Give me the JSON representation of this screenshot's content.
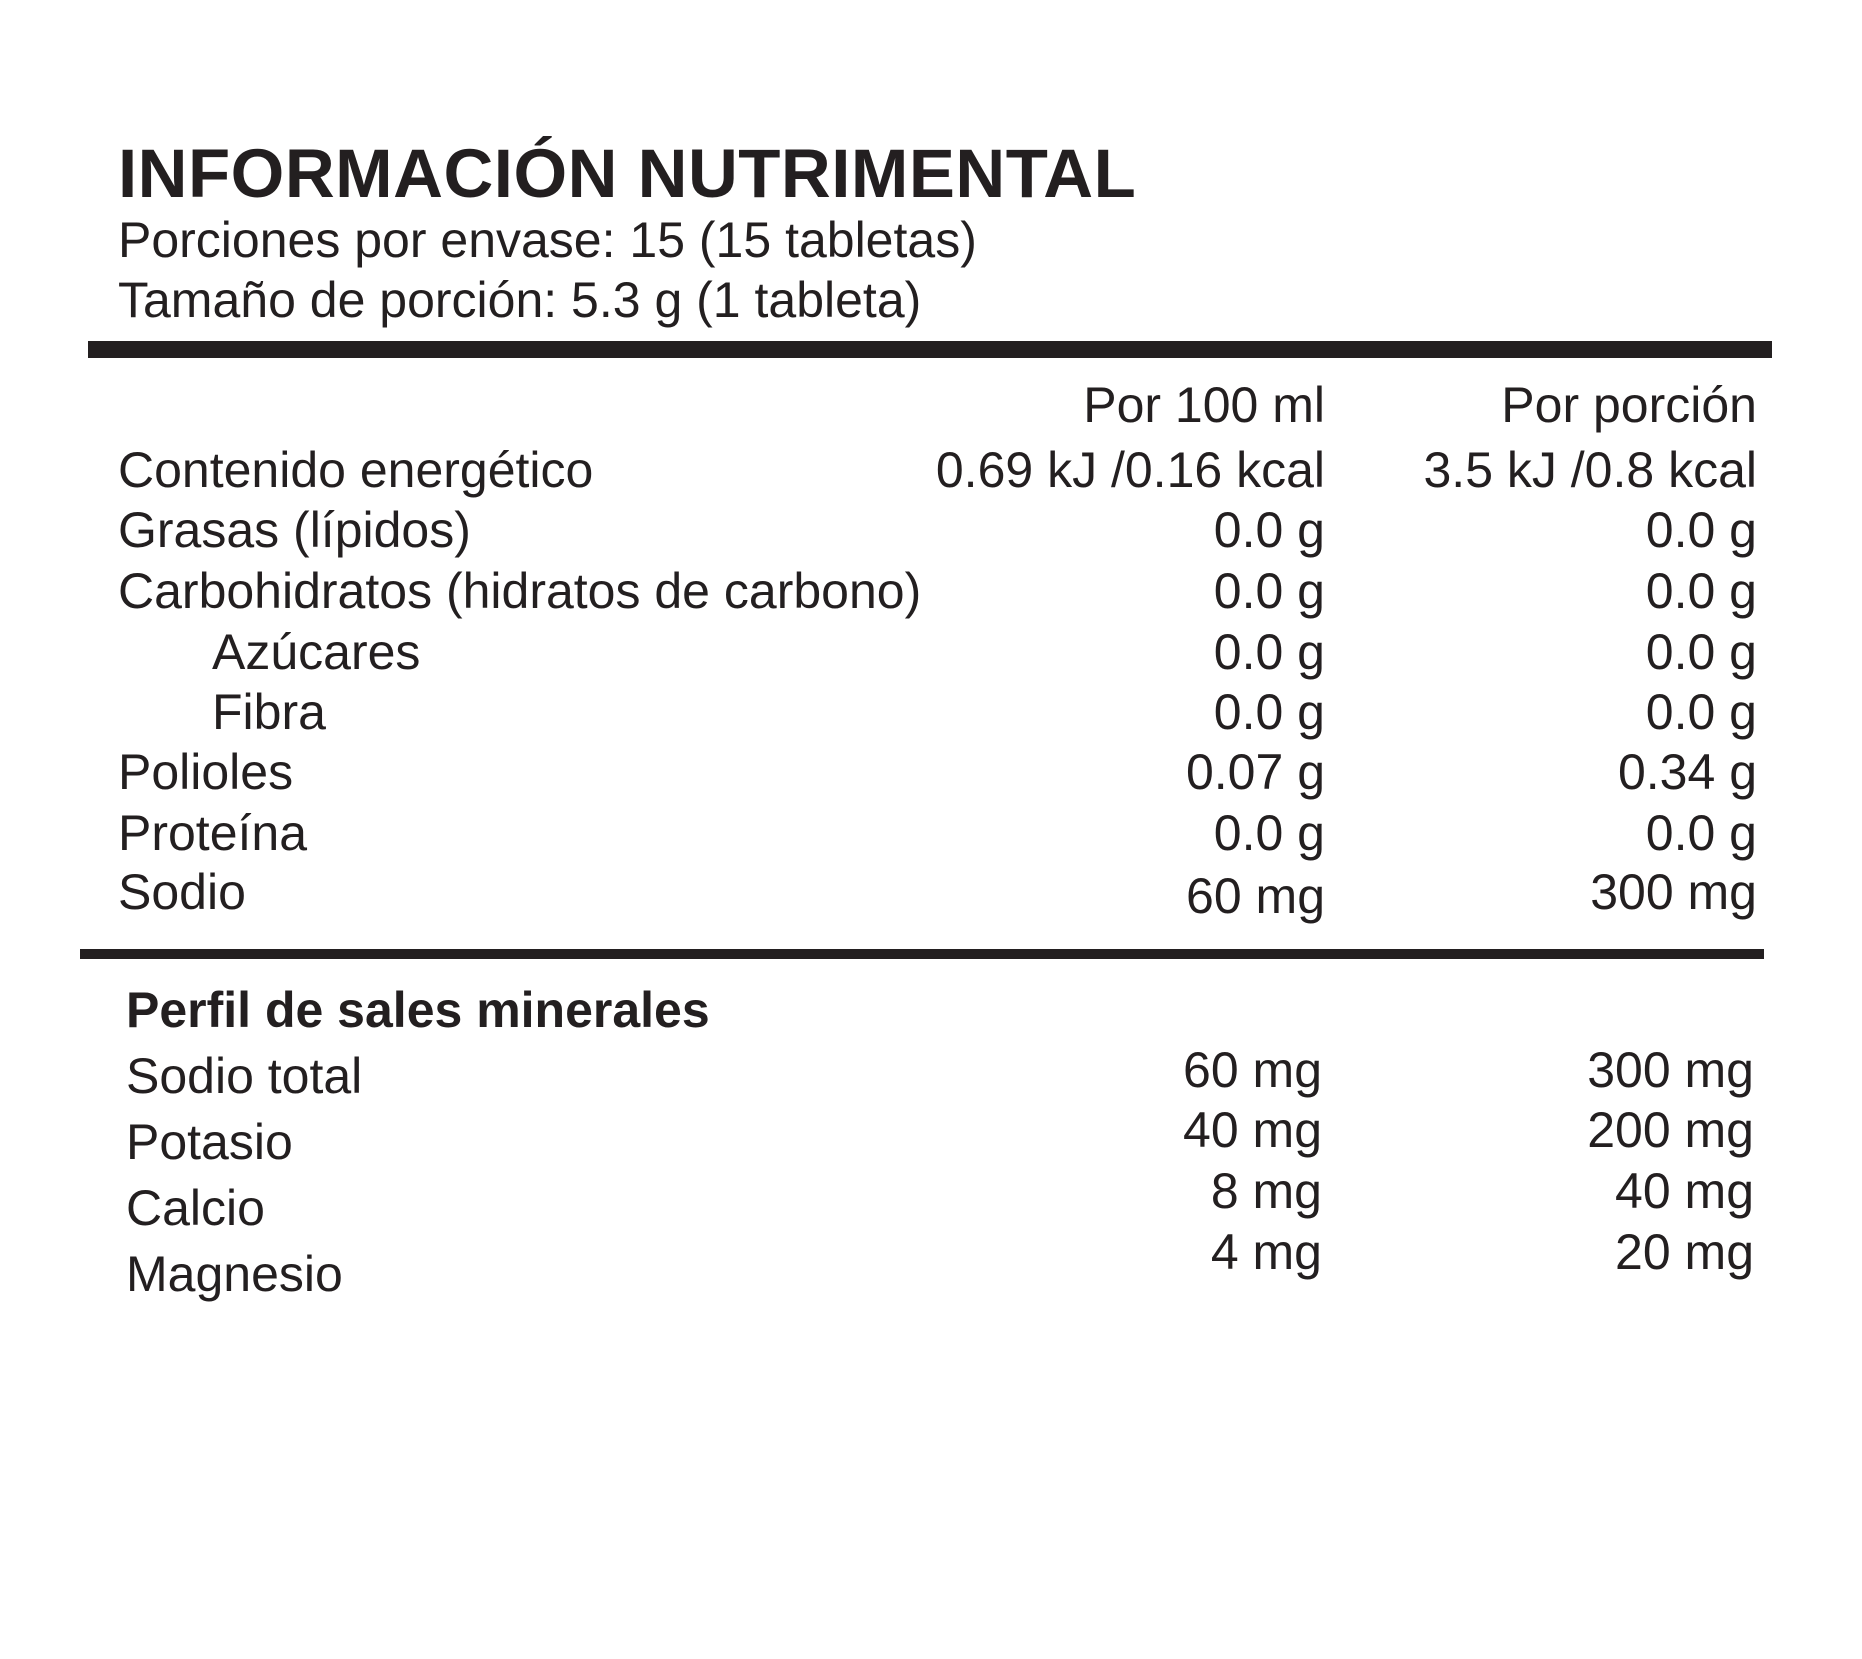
{
  "header": {
    "title": "INFORMACIÓN NUTRIMENTAL",
    "servings_per_container": "Porciones por envase: 15 (15 tabletas)",
    "serving_size": "Tamaño de porción: 5.3 g (1 tableta)"
  },
  "nutrition_table": {
    "columns": [
      "Por 100 ml",
      "Por porción"
    ],
    "rows": [
      {
        "label": "Contenido energético",
        "per_100ml": "0.69 kJ /0.16 kcal",
        "per_serving": "3.5 kJ /0.8 kcal"
      },
      {
        "label": "Grasas (lípidos)",
        "per_100ml": "0.0 g",
        "per_serving": "0.0 g"
      },
      {
        "label": "Carbohidratos (hidratos de carbono)",
        "per_100ml": "0.0 g",
        "per_serving": "0.0 g"
      },
      {
        "label": "Azúcares",
        "per_100ml": "0.0 g",
        "per_serving": "0.0 g"
      },
      {
        "label": "Fibra",
        "per_100ml": "0.0 g",
        "per_serving": "0.0 g"
      },
      {
        "label": "Polioles",
        "per_100ml": "0.07 g",
        "per_serving": "0.34 g"
      },
      {
        "label": "Proteína",
        "per_100ml": "0.0 g",
        "per_serving": "0.0 g"
      },
      {
        "label": "Sodio",
        "per_100ml": "60 mg",
        "per_serving": "300 mg"
      }
    ]
  },
  "minerals": {
    "title": "Perfil de sales minerales",
    "rows": [
      {
        "label": "Sodio total",
        "per_100ml": "60 mg",
        "per_serving": "300 mg"
      },
      {
        "label": "Potasio",
        "per_100ml": "40 mg",
        "per_serving": "200 mg"
      },
      {
        "label": "Calcio",
        "per_100ml": "8 mg",
        "per_serving": "40 mg"
      },
      {
        "label": "Magnesio",
        "per_100ml": "4 mg",
        "per_serving": "20 mg"
      }
    ]
  },
  "colors": {
    "text": "#231f20",
    "background": "#ffffff"
  }
}
